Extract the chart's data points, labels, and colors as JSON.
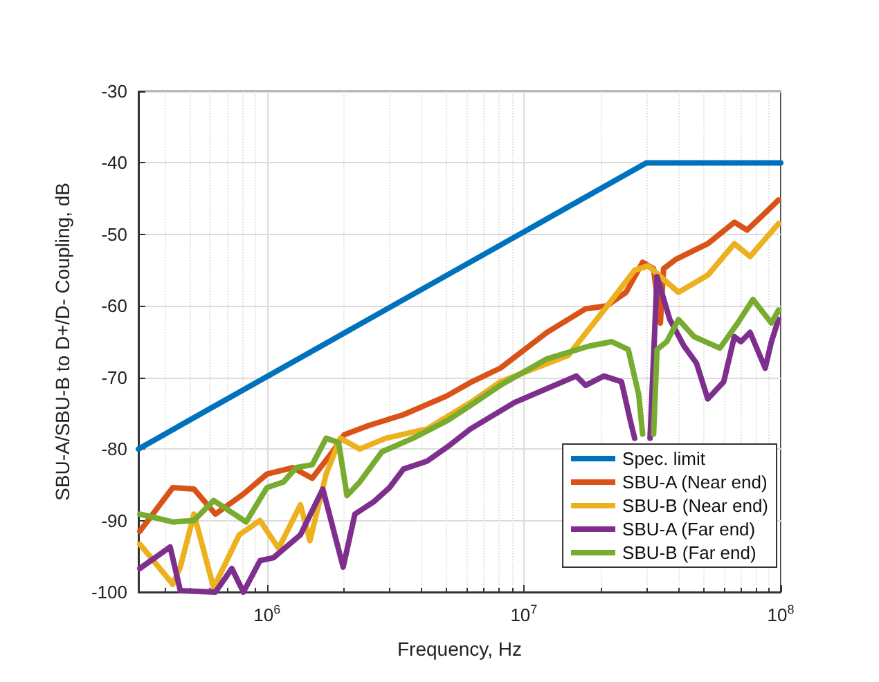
{
  "chart_data": {
    "type": "line",
    "xlabel": "Frequency, Hz",
    "ylabel": "SBU-A/SBU-B to D+/D- Coupling, dB",
    "log": "x",
    "grid": true,
    "legend": "bottom right",
    "marker": "none",
    "line_style": "solid",
    "xlim": [
      316000,
      100000000
    ],
    "xticks": [
      {
        "value": 1000000,
        "label": "10$^{6}$"
      },
      {
        "value": 10000000,
        "label": "10$^{7}$"
      },
      {
        "value": 100000000,
        "label": "10$^{8}$"
      }
    ],
    "ylim": [
      -100,
      -30
    ],
    "yticks": [
      -100,
      -90,
      -80,
      -70,
      -60,
      -50,
      -40,
      -30
    ],
    "series": [
      {
        "name": "Spec. limit",
        "color": "#0072bd",
        "x": [
          316000,
          30000000,
          100000000
        ],
        "values": [
          -80,
          -40,
          -40
        ]
      },
      {
        "name": "SBU-A (Near end)",
        "color": "#d95319",
        "x": [
          320000,
          430000,
          520000,
          630000,
          810000,
          1000000,
          1260000,
          1500000,
          1800000,
          2000000,
          2500000,
          3400000,
          5000000,
          6200000,
          8100000,
          12300000,
          17400000,
          21000000,
          25000000,
          29000000,
          32000000,
          34000000,
          35000000,
          39000000,
          52000000,
          66000000,
          74000000,
          87000000,
          98000000
        ],
        "values": [
          -91.5,
          -85.4,
          -85.6,
          -89.1,
          -86.3,
          -83.5,
          -82.6,
          -84.1,
          -80.4,
          -78,
          -76.7,
          -75.2,
          -72.6,
          -70.7,
          -68.7,
          -63.7,
          -60.4,
          -60,
          -58.1,
          -53.9,
          -54.8,
          -62.4,
          -54.8,
          -53.5,
          -51.3,
          -48.3,
          -49.4,
          -47,
          -45.2
        ]
      },
      {
        "name": "SBU-B (Near end)",
        "color": "#edb120",
        "x": [
          320000,
          430000,
          460000,
          520000,
          620000,
          780000,
          940000,
          1110000,
          1350000,
          1470000,
          1700000,
          1930000,
          2300000,
          2900000,
          4200000,
          6200000,
          8100000,
          14900000,
          20500000,
          27000000,
          30500000,
          40000000,
          52000000,
          66000000,
          76000000,
          98000000
        ],
        "values": [
          -93.3,
          -98.9,
          -96.5,
          -89.1,
          -99.4,
          -92,
          -90,
          -93.9,
          -87.8,
          -92.8,
          -83.5,
          -78.5,
          -80,
          -78.5,
          -77.2,
          -73.5,
          -70.6,
          -66.9,
          -60.6,
          -55,
          -54.4,
          -58.1,
          -55.7,
          -51.3,
          -53.1,
          -48.5
        ]
      },
      {
        "name": "SBU-A (Far end)",
        "color": "#7e2f8e",
        "x": [
          320000,
          420000,
          460000,
          630000,
          730000,
          810000,
          940000,
          1060000,
          1350000,
          1650000,
          1980000,
          2200000,
          2600000,
          3000000,
          3400000,
          4200000,
          5000000,
          6200000,
          9200000,
          16000000,
          17400000,
          20500000,
          24000000,
          26000000,
          27000000,
          29000000,
          31000000,
          33000000,
          37000000,
          42000000,
          47000000,
          52000000,
          60000000,
          66000000,
          70000000,
          76000000,
          87000000,
          92000000,
          98000000
        ],
        "values": [
          -96.7,
          -93.7,
          -99.8,
          -100,
          -96.7,
          -100,
          -95.6,
          -95.2,
          -92,
          -85.6,
          -96.5,
          -89.1,
          -87.4,
          -85.4,
          -82.8,
          -81.7,
          -79.8,
          -77.2,
          -73.5,
          -69.8,
          -71.1,
          -69.8,
          -70.6,
          -76.1,
          -78.5,
          null,
          -78.5,
          -55.9,
          -61.9,
          -65.6,
          -68,
          -73,
          -70.6,
          -64.3,
          -65,
          -63.7,
          -68.7,
          -65,
          -61.9
        ]
      },
      {
        "name": "SBU-B (Far end)",
        "color": "#77ac30",
        "x": [
          320000,
          430000,
          520000,
          620000,
          830000,
          1000000,
          1160000,
          1300000,
          1500000,
          1700000,
          1900000,
          2050000,
          2300000,
          2800000,
          3700000,
          5000000,
          6200000,
          8100000,
          12300000,
          18000000,
          22000000,
          25500000,
          28000000,
          29000000,
          30500000,
          32000000,
          33000000,
          36000000,
          40000000,
          46000000,
          58000000,
          68000000,
          78000000,
          92000000,
          98000000
        ],
        "values": [
          -89.1,
          -90.2,
          -90,
          -87.2,
          -90.2,
          -85.4,
          -84.6,
          -82.6,
          -82.2,
          -78.5,
          -79.1,
          -86.5,
          -84.6,
          -80.4,
          -78.5,
          -76.1,
          -73.9,
          -71.1,
          -67.4,
          -65.6,
          -65,
          -66.1,
          -72.4,
          -77.9,
          null,
          -77.9,
          -66.1,
          -65,
          -61.9,
          -64.3,
          -65.9,
          -62.4,
          -59.1,
          -62.4,
          -60.6
        ]
      }
    ]
  }
}
